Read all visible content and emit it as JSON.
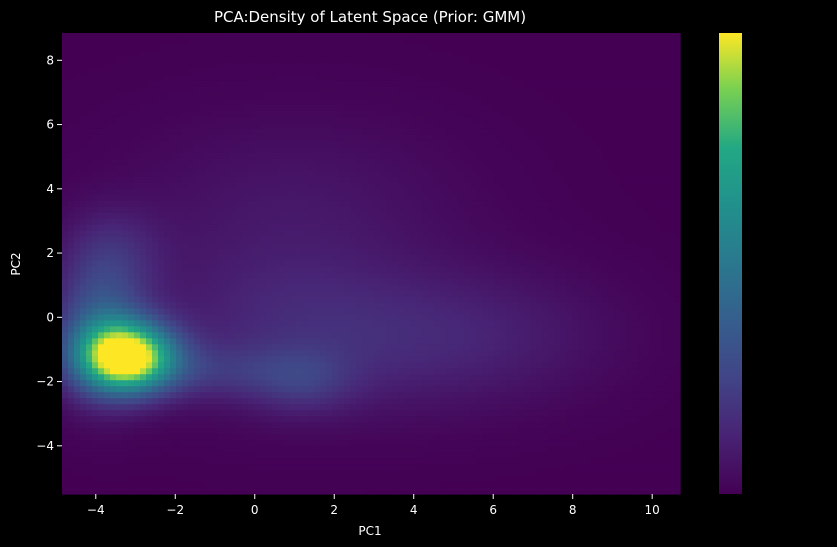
{
  "chart_data": {
    "type": "heatmap",
    "title": "PCA:Density of Latent Space (Prior: GMM)",
    "xlabel": "PC1",
    "ylabel": "PC2",
    "xlim": [
      -4.85,
      10.7
    ],
    "ylim": [
      -5.5,
      8.85
    ],
    "xticks": [
      -4,
      -2,
      0,
      2,
      4,
      6,
      8,
      10
    ],
    "yticks": [
      -4,
      -2,
      0,
      2,
      4,
      6,
      8
    ],
    "colormap": "viridis",
    "colorbar": true,
    "colorbar_ticks": [],
    "density_components": [
      {
        "cx": -3.2,
        "cy": -1.25,
        "sx": 0.85,
        "sy": 0.75,
        "w": 1.0
      },
      {
        "cx": -3.9,
        "cy": -0.4,
        "sx": 0.8,
        "sy": 1.4,
        "w": 0.32
      },
      {
        "cx": -3.6,
        "cy": 2.0,
        "sx": 0.9,
        "sy": 1.0,
        "w": 0.12
      },
      {
        "cx": -1.0,
        "cy": -1.7,
        "sx": 1.4,
        "sy": 0.6,
        "w": 0.12
      },
      {
        "cx": 1.2,
        "cy": -2.0,
        "sx": 0.9,
        "sy": 0.7,
        "w": 0.13
      },
      {
        "cx": 0.5,
        "cy": -0.2,
        "sx": 2.5,
        "sy": 1.8,
        "w": 0.1
      },
      {
        "cx": 3.5,
        "cy": -0.8,
        "sx": 2.5,
        "sy": 1.5,
        "w": 0.09
      },
      {
        "cx": 6.5,
        "cy": -0.5,
        "sx": 2.2,
        "sy": 1.5,
        "w": 0.06
      },
      {
        "cx": 1.0,
        "cy": 3.5,
        "sx": 3.0,
        "sy": 2.0,
        "w": 0.07
      }
    ]
  }
}
